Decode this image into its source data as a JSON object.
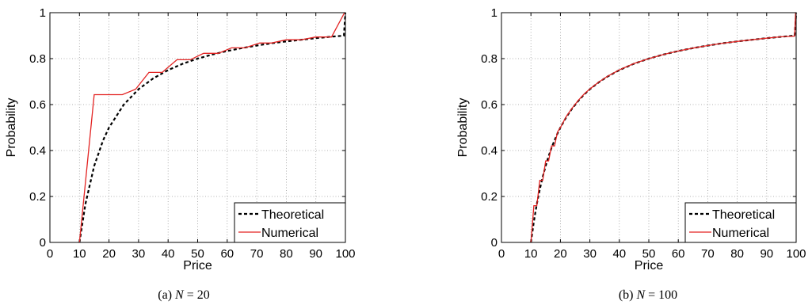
{
  "chart_data": [
    {
      "type": "line",
      "caption_prefix": "(a)",
      "caption_var": "N",
      "caption_eq": "= 20",
      "xlabel": "Price",
      "ylabel": "Probability",
      "xlim": [
        0,
        100
      ],
      "ylim": [
        0,
        1
      ],
      "xticks": [
        "0",
        "10",
        "20",
        "30",
        "40",
        "50",
        "60",
        "70",
        "80",
        "90",
        "100"
      ],
      "yticks": [
        "0",
        "0.2",
        "0.4",
        "0.6",
        "0.8",
        "1"
      ],
      "grid": true,
      "legend_position": "bottom-right",
      "series": [
        {
          "name": "Theoretical",
          "style": "dashed",
          "color": "#000000",
          "x": [
            10,
            12,
            15,
            18,
            20,
            25,
            30,
            35,
            40,
            45,
            50,
            55,
            60,
            65,
            70,
            75,
            80,
            85,
            90,
            95,
            99.5,
            100
          ],
          "y": [
            0,
            0.167,
            0.333,
            0.444,
            0.5,
            0.6,
            0.667,
            0.714,
            0.75,
            0.778,
            0.8,
            0.818,
            0.833,
            0.846,
            0.857,
            0.867,
            0.875,
            0.882,
            0.889,
            0.895,
            0.9,
            1
          ]
        },
        {
          "name": "Numerical",
          "style": "solid",
          "color": "#e32322",
          "x": [
            10,
            15,
            24.5,
            29,
            33.5,
            38,
            43,
            47.5,
            52,
            57,
            61.5,
            66,
            71,
            75,
            80,
            85,
            90,
            95.3,
            99.7
          ],
          "y": [
            0,
            0.643,
            0.643,
            0.667,
            0.74,
            0.74,
            0.795,
            0.795,
            0.823,
            0.823,
            0.847,
            0.847,
            0.868,
            0.868,
            0.882,
            0.882,
            0.894,
            0.894,
            1
          ]
        }
      ]
    },
    {
      "type": "line",
      "caption_prefix": "(b)",
      "caption_var": "N",
      "caption_eq": "= 100",
      "xlabel": "Price",
      "ylabel": "Probability",
      "xlim": [
        0,
        100
      ],
      "ylim": [
        0,
        1
      ],
      "xticks": [
        "0",
        "10",
        "20",
        "30",
        "40",
        "50",
        "60",
        "70",
        "80",
        "90",
        "100"
      ],
      "yticks": [
        "0",
        "0.2",
        "0.4",
        "0.6",
        "0.8",
        "1"
      ],
      "grid": true,
      "legend_position": "bottom-right",
      "series": [
        {
          "name": "Theoretical",
          "style": "dashed",
          "color": "#000000",
          "x": [
            10,
            11,
            12,
            13,
            14,
            15,
            16,
            17,
            18,
            19,
            20,
            22,
            24,
            26,
            28,
            30,
            33,
            36,
            40,
            45,
            50,
            55,
            60,
            65,
            70,
            75,
            80,
            85,
            90,
            95,
            99.5,
            100
          ],
          "y": [
            0,
            0.091,
            0.167,
            0.231,
            0.286,
            0.333,
            0.375,
            0.412,
            0.444,
            0.474,
            0.5,
            0.545,
            0.583,
            0.615,
            0.643,
            0.667,
            0.697,
            0.722,
            0.75,
            0.778,
            0.8,
            0.818,
            0.833,
            0.846,
            0.857,
            0.867,
            0.875,
            0.882,
            0.889,
            0.895,
            0.9,
            1
          ]
        },
        {
          "name": "Numerical",
          "style": "solid",
          "color": "#e32322",
          "x": [
            10,
            11,
            12,
            13,
            14,
            15,
            16,
            17,
            18,
            19,
            20,
            22,
            24,
            26,
            28,
            30,
            33,
            36,
            40,
            45,
            50,
            55,
            60,
            65,
            70,
            75,
            80,
            85,
            90,
            95,
            99.5,
            99.8
          ],
          "y": [
            0,
            0.16,
            0.16,
            0.27,
            0.27,
            0.355,
            0.355,
            0.42,
            0.42,
            0.48,
            0.5,
            0.548,
            0.585,
            0.617,
            0.645,
            0.668,
            0.698,
            0.723,
            0.751,
            0.779,
            0.8,
            0.818,
            0.833,
            0.846,
            0.857,
            0.867,
            0.875,
            0.882,
            0.889,
            0.895,
            0.898,
            1
          ]
        }
      ]
    }
  ]
}
